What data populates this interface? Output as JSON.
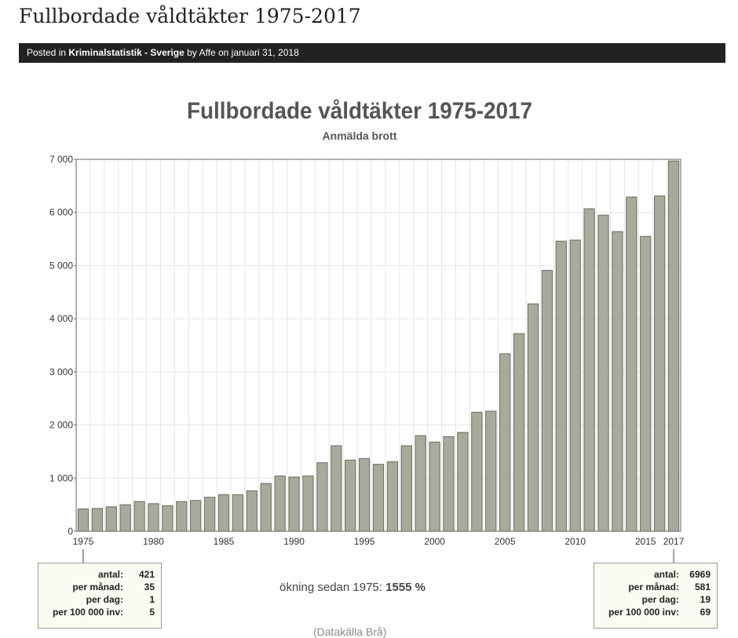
{
  "post": {
    "title": "Fullbordade våldtäkter 1975-2017",
    "meta_prefix": "Posted in",
    "category": "Kriminalstatistik - Sverige",
    "meta_by": "by",
    "author": "Affe",
    "meta_on": "on",
    "date": "januari 31, 2018"
  },
  "chart_data": {
    "type": "bar",
    "title": "Fullbordade våldtäkter 1975-2017",
    "subtitle": "Anmälda brott",
    "xlabel": "",
    "ylabel": "",
    "ylim": [
      0,
      7000
    ],
    "yticks": [
      0,
      1000,
      2000,
      3000,
      4000,
      5000,
      6000,
      7000
    ],
    "ytick_labels": [
      "0",
      "1 000",
      "2 000",
      "3 000",
      "4 000",
      "5 000",
      "6 000",
      "7 000"
    ],
    "xtick_labels": [
      "1975",
      "1980",
      "1985",
      "1990",
      "1995",
      "2000",
      "2005",
      "2010",
      "2015",
      "2017"
    ],
    "xtick_years": [
      1975,
      1980,
      1985,
      1990,
      1995,
      2000,
      2005,
      2010,
      2015,
      2017
    ],
    "grid": true,
    "colors": {
      "bar_fill": "#a8aa9c",
      "bar_stroke": "#6b6d62"
    },
    "categories": [
      1975,
      1976,
      1977,
      1978,
      1979,
      1980,
      1981,
      1982,
      1983,
      1984,
      1985,
      1986,
      1987,
      1988,
      1989,
      1990,
      1991,
      1992,
      1993,
      1994,
      1995,
      1996,
      1997,
      1998,
      1999,
      2000,
      2001,
      2002,
      2003,
      2004,
      2005,
      2006,
      2007,
      2008,
      2009,
      2010,
      2011,
      2012,
      2013,
      2014,
      2015,
      2016,
      2017
    ],
    "values": [
      421,
      430,
      460,
      500,
      560,
      520,
      480,
      560,
      580,
      640,
      690,
      690,
      760,
      900,
      1040,
      1020,
      1040,
      1290,
      1610,
      1340,
      1370,
      1260,
      1310,
      1610,
      1800,
      1680,
      1780,
      1860,
      2240,
      2260,
      3340,
      3720,
      4280,
      4910,
      5460,
      5480,
      6070,
      5950,
      5640,
      6290,
      5550,
      6310,
      6969
    ]
  },
  "stats_left": {
    "rows": [
      {
        "label": "antal:",
        "value": "421"
      },
      {
        "label": "per månad:",
        "value": "35"
      },
      {
        "label": "per dag:",
        "value": "1"
      },
      {
        "label": "per 100 000 inv:",
        "value": "5"
      }
    ]
  },
  "stats_right": {
    "rows": [
      {
        "label": "antal:",
        "value": "6969"
      },
      {
        "label": "per månad:",
        "value": "581"
      },
      {
        "label": "per dag:",
        "value": "19"
      },
      {
        "label": "per 100 000 inv:",
        "value": "69"
      }
    ]
  },
  "increase": {
    "prefix": "ökning sedan 1975:",
    "value": "1555 %"
  },
  "source": "(Datakälla Brå)"
}
